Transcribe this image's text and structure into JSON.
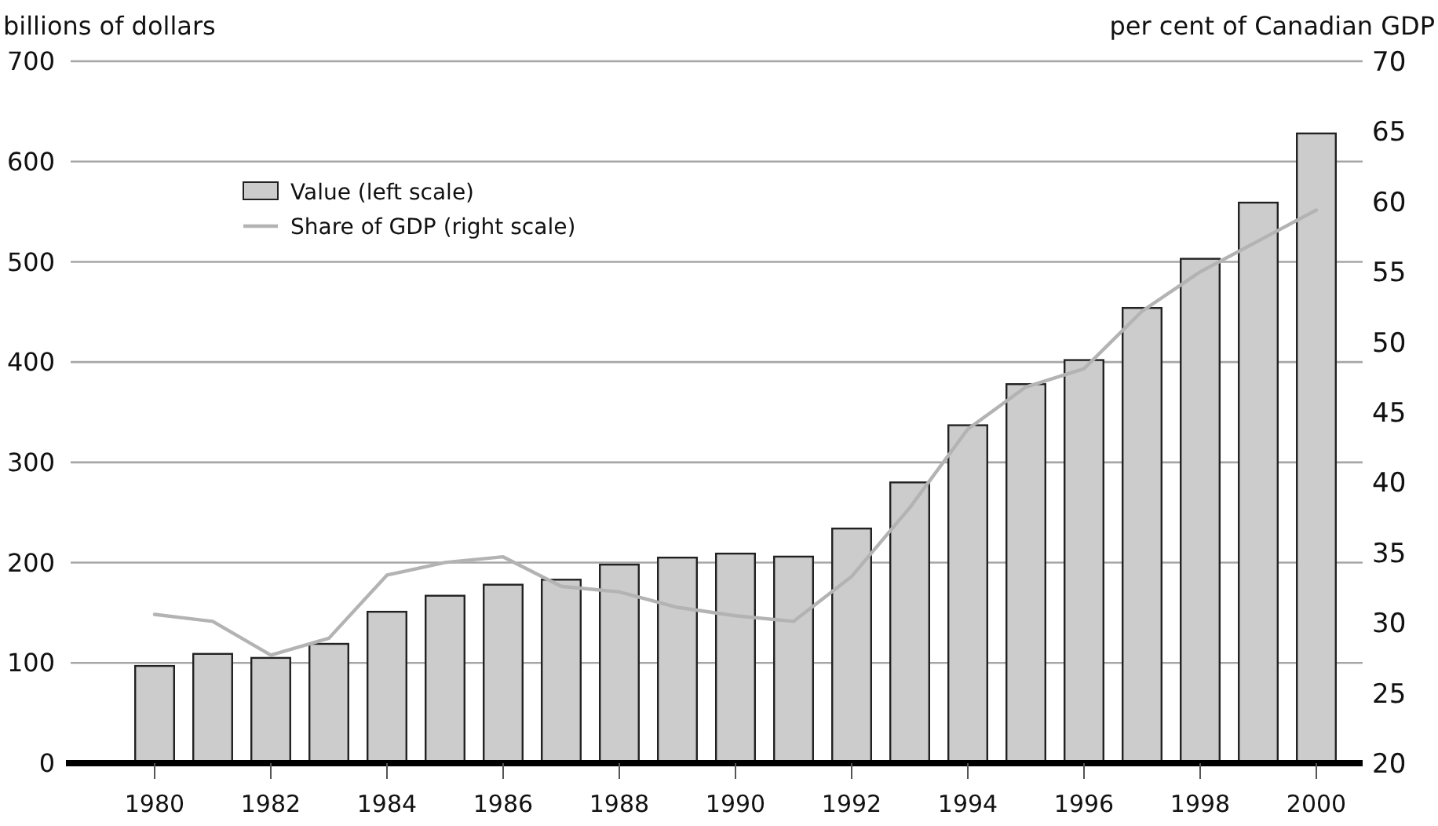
{
  "chart_data": {
    "type": "bar",
    "ylabel": "billions of dollars",
    "y2label": "per cent of Canadian GDP",
    "categories": [
      "1980",
      null,
      "1982",
      null,
      "1984",
      null,
      "1986",
      null,
      "1988",
      null,
      "1990",
      null,
      "1992",
      null,
      "1994",
      null,
      "1996",
      null,
      "1998",
      null,
      "2000"
    ],
    "series": [
      {
        "name": "Value (left scale)",
        "color": "#cccccc",
        "values": [
          97,
          109,
          105,
          119,
          151,
          167,
          178,
          183,
          198,
          205,
          209,
          206,
          234,
          280,
          337,
          378,
          402,
          454,
          503,
          559,
          628
        ]
      },
      {
        "name": "Share of GDP (right scale)",
        "type": "line",
        "axis": "y2",
        "color": "#b3b3b3",
        "values": [
          30.6,
          30.1,
          27.7,
          28.9,
          33.4,
          34.3,
          34.7,
          32.6,
          32.2,
          31.1,
          30.5,
          30.1,
          33.3,
          38.2,
          43.8,
          46.8,
          48.1,
          52.2,
          55.0,
          57.2,
          59.4
        ]
      }
    ],
    "ylim": [
      0,
      700
    ],
    "yticks": [
      0,
      100,
      200,
      300,
      400,
      500,
      600,
      700
    ],
    "y2lim": [
      20,
      70
    ],
    "y2ticks": [
      20,
      25,
      30,
      35,
      40,
      45,
      50,
      55,
      60,
      65,
      70
    ],
    "grid": "y",
    "legend": "top left",
    "marker": "none",
    "line_style": "solid"
  }
}
